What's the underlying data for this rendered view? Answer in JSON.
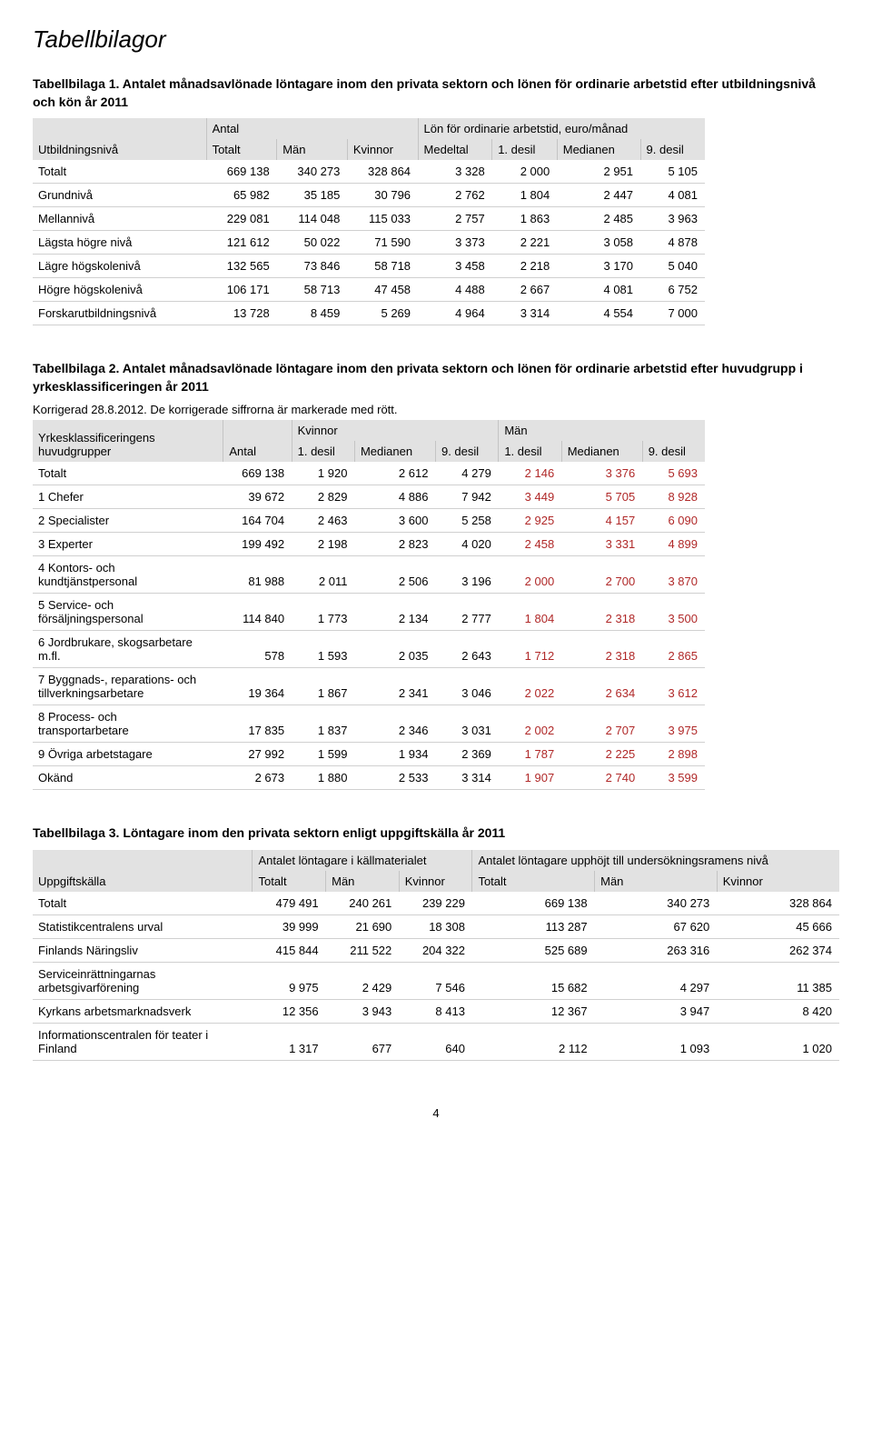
{
  "page_title": "Tabellbilagor",
  "page_number": "4",
  "table1": {
    "title": "Tabellbilaga 1. Antalet månadsavlönade löntagare inom den privata sektorn och lönen för ordinarie arbetstid efter utbildningsnivå och kön år 2011",
    "header_row1": [
      "Utbildningsnivå",
      "Antal",
      "Lön för ordinarie arbetstid, euro/månad"
    ],
    "header_row2": [
      "Totalt",
      "Män",
      "Kvinnor",
      "Medeltal",
      "1. desil",
      "Medianen",
      "9. desil"
    ],
    "rows": [
      {
        "label": "Totalt",
        "c": [
          "669 138",
          "340 273",
          "328 864",
          "3 328",
          "2 000",
          "2 951",
          "5 105"
        ]
      },
      {
        "label": "Grundnivå",
        "c": [
          "65 982",
          "35 185",
          "30 796",
          "2 762",
          "1 804",
          "2 447",
          "4 081"
        ]
      },
      {
        "label": "Mellannivå",
        "c": [
          "229 081",
          "114 048",
          "115 033",
          "2 757",
          "1 863",
          "2 485",
          "3 963"
        ]
      },
      {
        "label": "Lägsta högre nivå",
        "c": [
          "121 612",
          "50 022",
          "71 590",
          "3 373",
          "2 221",
          "3 058",
          "4 878"
        ]
      },
      {
        "label": "Lägre högskolenivå",
        "c": [
          "132 565",
          "73 846",
          "58 718",
          "3 458",
          "2 218",
          "3 170",
          "5 040"
        ]
      },
      {
        "label": "Högre högskolenivå",
        "c": [
          "106 171",
          "58 713",
          "47 458",
          "4 488",
          "2 667",
          "4 081",
          "6 752"
        ]
      },
      {
        "label": "Forskarutbildningsnivå",
        "c": [
          "13 728",
          "8 459",
          "5 269",
          "4 964",
          "3 314",
          "4 554",
          "7 000"
        ]
      }
    ]
  },
  "table2": {
    "title": "Tabellbilaga 2. Antalet månadsavlönade löntagare inom den privata sektorn och lönen för ordinarie arbetstid efter huvudgrupp i yrkesklassificeringen år 2011",
    "note": "Korrigerad 28.8.2012. De korrigerade siffrorna är markerade med rött.",
    "header_row1": [
      "Yrkesklassificeringens huvudgrupper",
      "Antal",
      "Kvinnor",
      "Män"
    ],
    "header_row2": [
      "1. desil",
      "Medianen",
      "9. desil",
      "1. desil",
      "Medianen",
      "9. desil"
    ],
    "rows": [
      {
        "label": "Totalt",
        "c": [
          "669 138",
          "1 920",
          "2 612",
          "4 279",
          "2 146",
          "3 376",
          "5 693"
        ]
      },
      {
        "label": "1 Chefer",
        "c": [
          "39 672",
          "2 829",
          "4 886",
          "7 942",
          "3 449",
          "5 705",
          "8 928"
        ]
      },
      {
        "label": "2 Specialister",
        "c": [
          "164 704",
          "2 463",
          "3 600",
          "5 258",
          "2 925",
          "4 157",
          "6 090"
        ]
      },
      {
        "label": "3 Experter",
        "c": [
          "199 492",
          "2 198",
          "2 823",
          "4 020",
          "2 458",
          "3 331",
          "4 899"
        ]
      },
      {
        "label": "4 Kontors- och kundtjänstpersonal",
        "c": [
          "81 988",
          "2 011",
          "2 506",
          "3 196",
          "2 000",
          "2 700",
          "3 870"
        ]
      },
      {
        "label": "5 Service- och försäljningspersonal",
        "c": [
          "114 840",
          "1 773",
          "2 134",
          "2 777",
          "1 804",
          "2 318",
          "3 500"
        ]
      },
      {
        "label": "6 Jordbrukare, skogsarbetare m.fl.",
        "c": [
          "578",
          "1 593",
          "2 035",
          "2 643",
          "1 712",
          "2 318",
          "2 865"
        ]
      },
      {
        "label": "7 Byggnads-, reparations- och tillverkningsarbetare",
        "c": [
          "19 364",
          "1 867",
          "2 341",
          "3 046",
          "2 022",
          "2 634",
          "3 612"
        ]
      },
      {
        "label": "8 Process- och transportarbetare",
        "c": [
          "17 835",
          "1 837",
          "2 346",
          "3 031",
          "2 002",
          "2 707",
          "3 975"
        ]
      },
      {
        "label": "9 Övriga arbetstagare",
        "c": [
          "27 992",
          "1 599",
          "1 934",
          "2 369",
          "1 787",
          "2 225",
          "2 898"
        ]
      },
      {
        "label": "Okänd",
        "c": [
          "2 673",
          "1 880",
          "2 533",
          "3 314",
          "1 907",
          "2 740",
          "3 599"
        ]
      }
    ],
    "red_cols": [
      4,
      5,
      6
    ]
  },
  "table3": {
    "title": "Tabellbilaga 3. Löntagare inom den privata sektorn enligt uppgiftskälla år 2011",
    "header_row1": [
      "Uppgiftskälla",
      "Antalet löntagare i källmaterialet",
      "Antalet löntagare upphöjt till undersökningsramens nivå"
    ],
    "header_row2": [
      "Totalt",
      "Män",
      "Kvinnor",
      "Totalt",
      "Män",
      "Kvinnor"
    ],
    "rows": [
      {
        "label": "Totalt",
        "c": [
          "479 491",
          "240 261",
          "239 229",
          "669 138",
          "340 273",
          "328 864"
        ]
      },
      {
        "label": "Statistikcentralens urval",
        "c": [
          "39 999",
          "21 690",
          "18 308",
          "113 287",
          "67 620",
          "45 666"
        ]
      },
      {
        "label": "Finlands Näringsliv",
        "c": [
          "415 844",
          "211 522",
          "204 322",
          "525 689",
          "263 316",
          "262 374"
        ]
      },
      {
        "label": "Serviceinrättningarnas arbetsgivarförening",
        "c": [
          "9 975",
          "2 429",
          "7 546",
          "15 682",
          "4 297",
          "11 385"
        ]
      },
      {
        "label": "Kyrkans arbetsmarknadsverk",
        "c": [
          "12 356",
          "3 943",
          "8 413",
          "12 367",
          "3 947",
          "8 420"
        ]
      },
      {
        "label": "Informationscentralen för teater i Finland",
        "c": [
          "1 317",
          "677",
          "640",
          "2 112",
          "1 093",
          "1 020"
        ]
      }
    ]
  }
}
